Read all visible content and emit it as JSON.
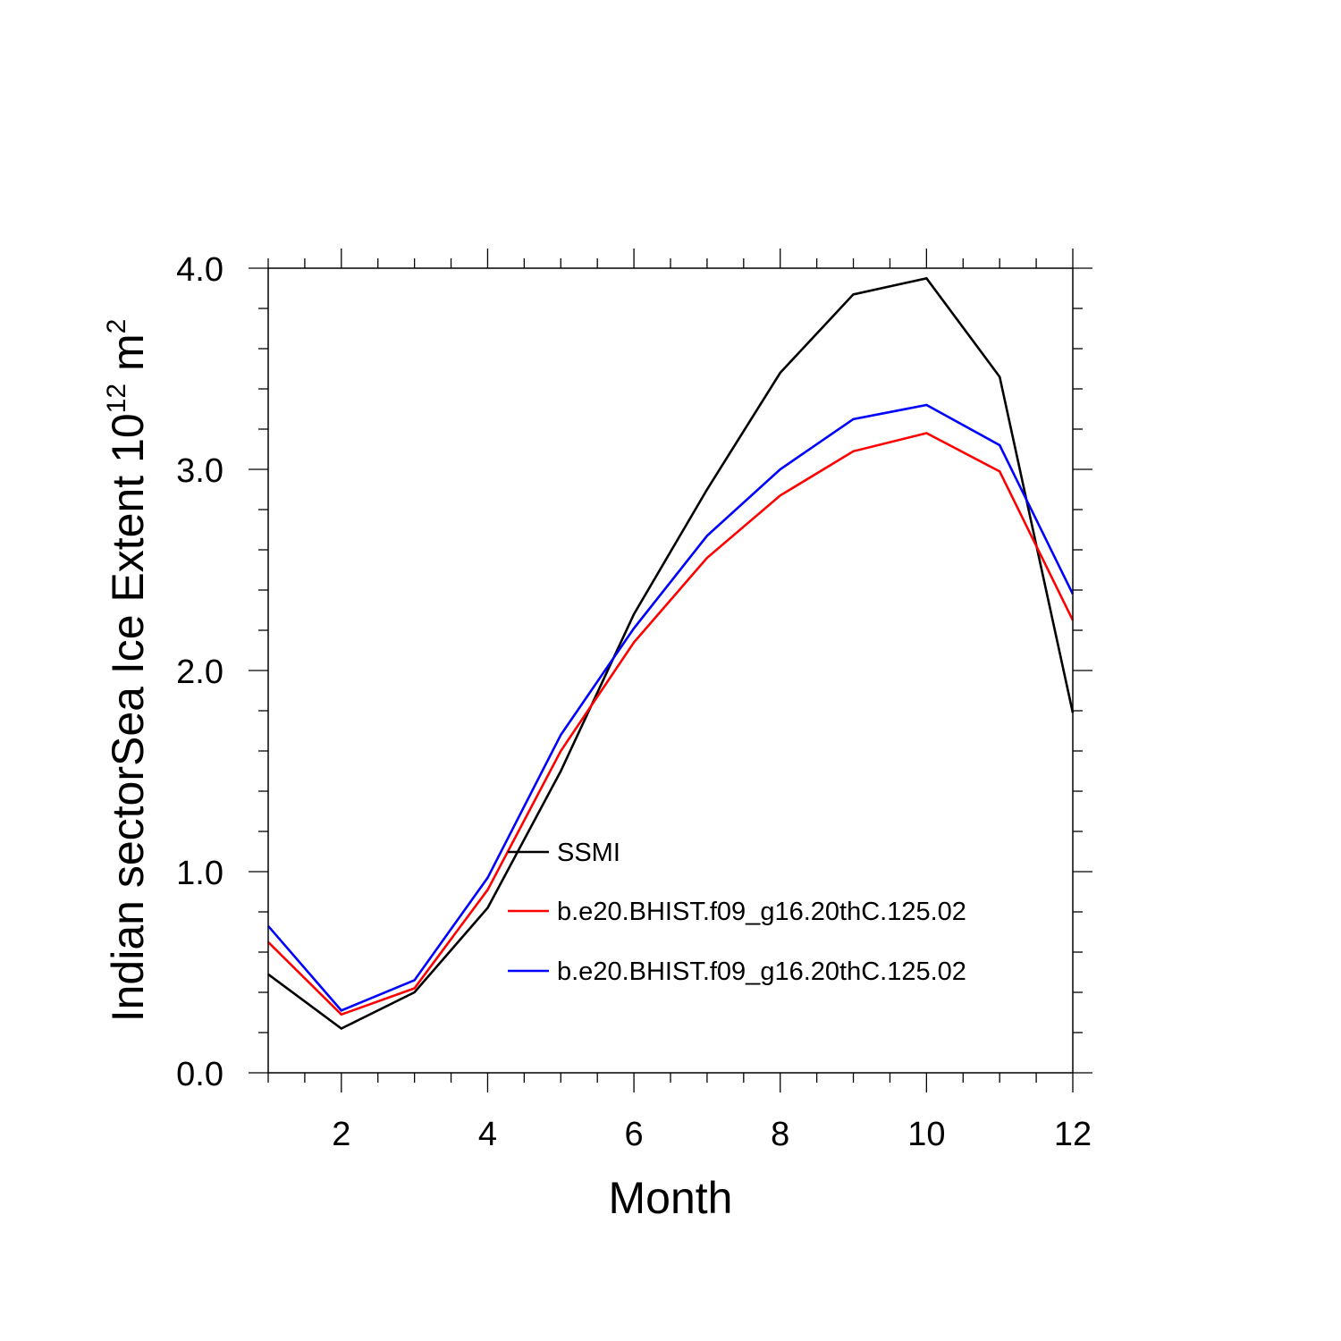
{
  "chart_data": {
    "type": "line",
    "title": "",
    "xlabel": "Month",
    "ylabel": {
      "main": "Indian sectorSea Ice Extent 10",
      "exponent": "12",
      "unit": " m",
      "unit_exponent": "2"
    },
    "xlim": [
      1,
      12
    ],
    "ylim": [
      0,
      4
    ],
    "x": [
      1,
      2,
      3,
      4,
      5,
      6,
      7,
      8,
      9,
      10,
      11,
      12
    ],
    "x_ticks": [
      2,
      4,
      6,
      8,
      10,
      12
    ],
    "x_tick_labels": [
      "2",
      "4",
      "6",
      "8",
      "10",
      "12"
    ],
    "y_ticks": [
      0,
      1,
      2,
      3,
      4
    ],
    "y_tick_labels": [
      "0.0",
      "1.0",
      "2.0",
      "3.0",
      "4.0"
    ],
    "grid": false,
    "legend_position": "lower-center",
    "series": [
      {
        "name": "SSMI",
        "color": "#000000",
        "values": [
          0.49,
          0.22,
          0.4,
          0.82,
          1.5,
          2.28,
          2.9,
          3.48,
          3.87,
          3.95,
          3.46,
          1.79
        ]
      },
      {
        "name": "b.e20.BHIST.f09_g16.20thC.125.02",
        "color": "#ff0000",
        "values": [
          0.65,
          0.29,
          0.42,
          0.91,
          1.6,
          2.14,
          2.56,
          2.87,
          3.09,
          3.18,
          2.99,
          2.25
        ]
      },
      {
        "name": "b.e20.BHIST.f09_g16.20thC.125.02",
        "color": "#0000ff",
        "values": [
          0.73,
          0.31,
          0.46,
          0.97,
          1.68,
          2.21,
          2.67,
          3.0,
          3.25,
          3.32,
          3.12,
          2.38
        ]
      }
    ]
  }
}
